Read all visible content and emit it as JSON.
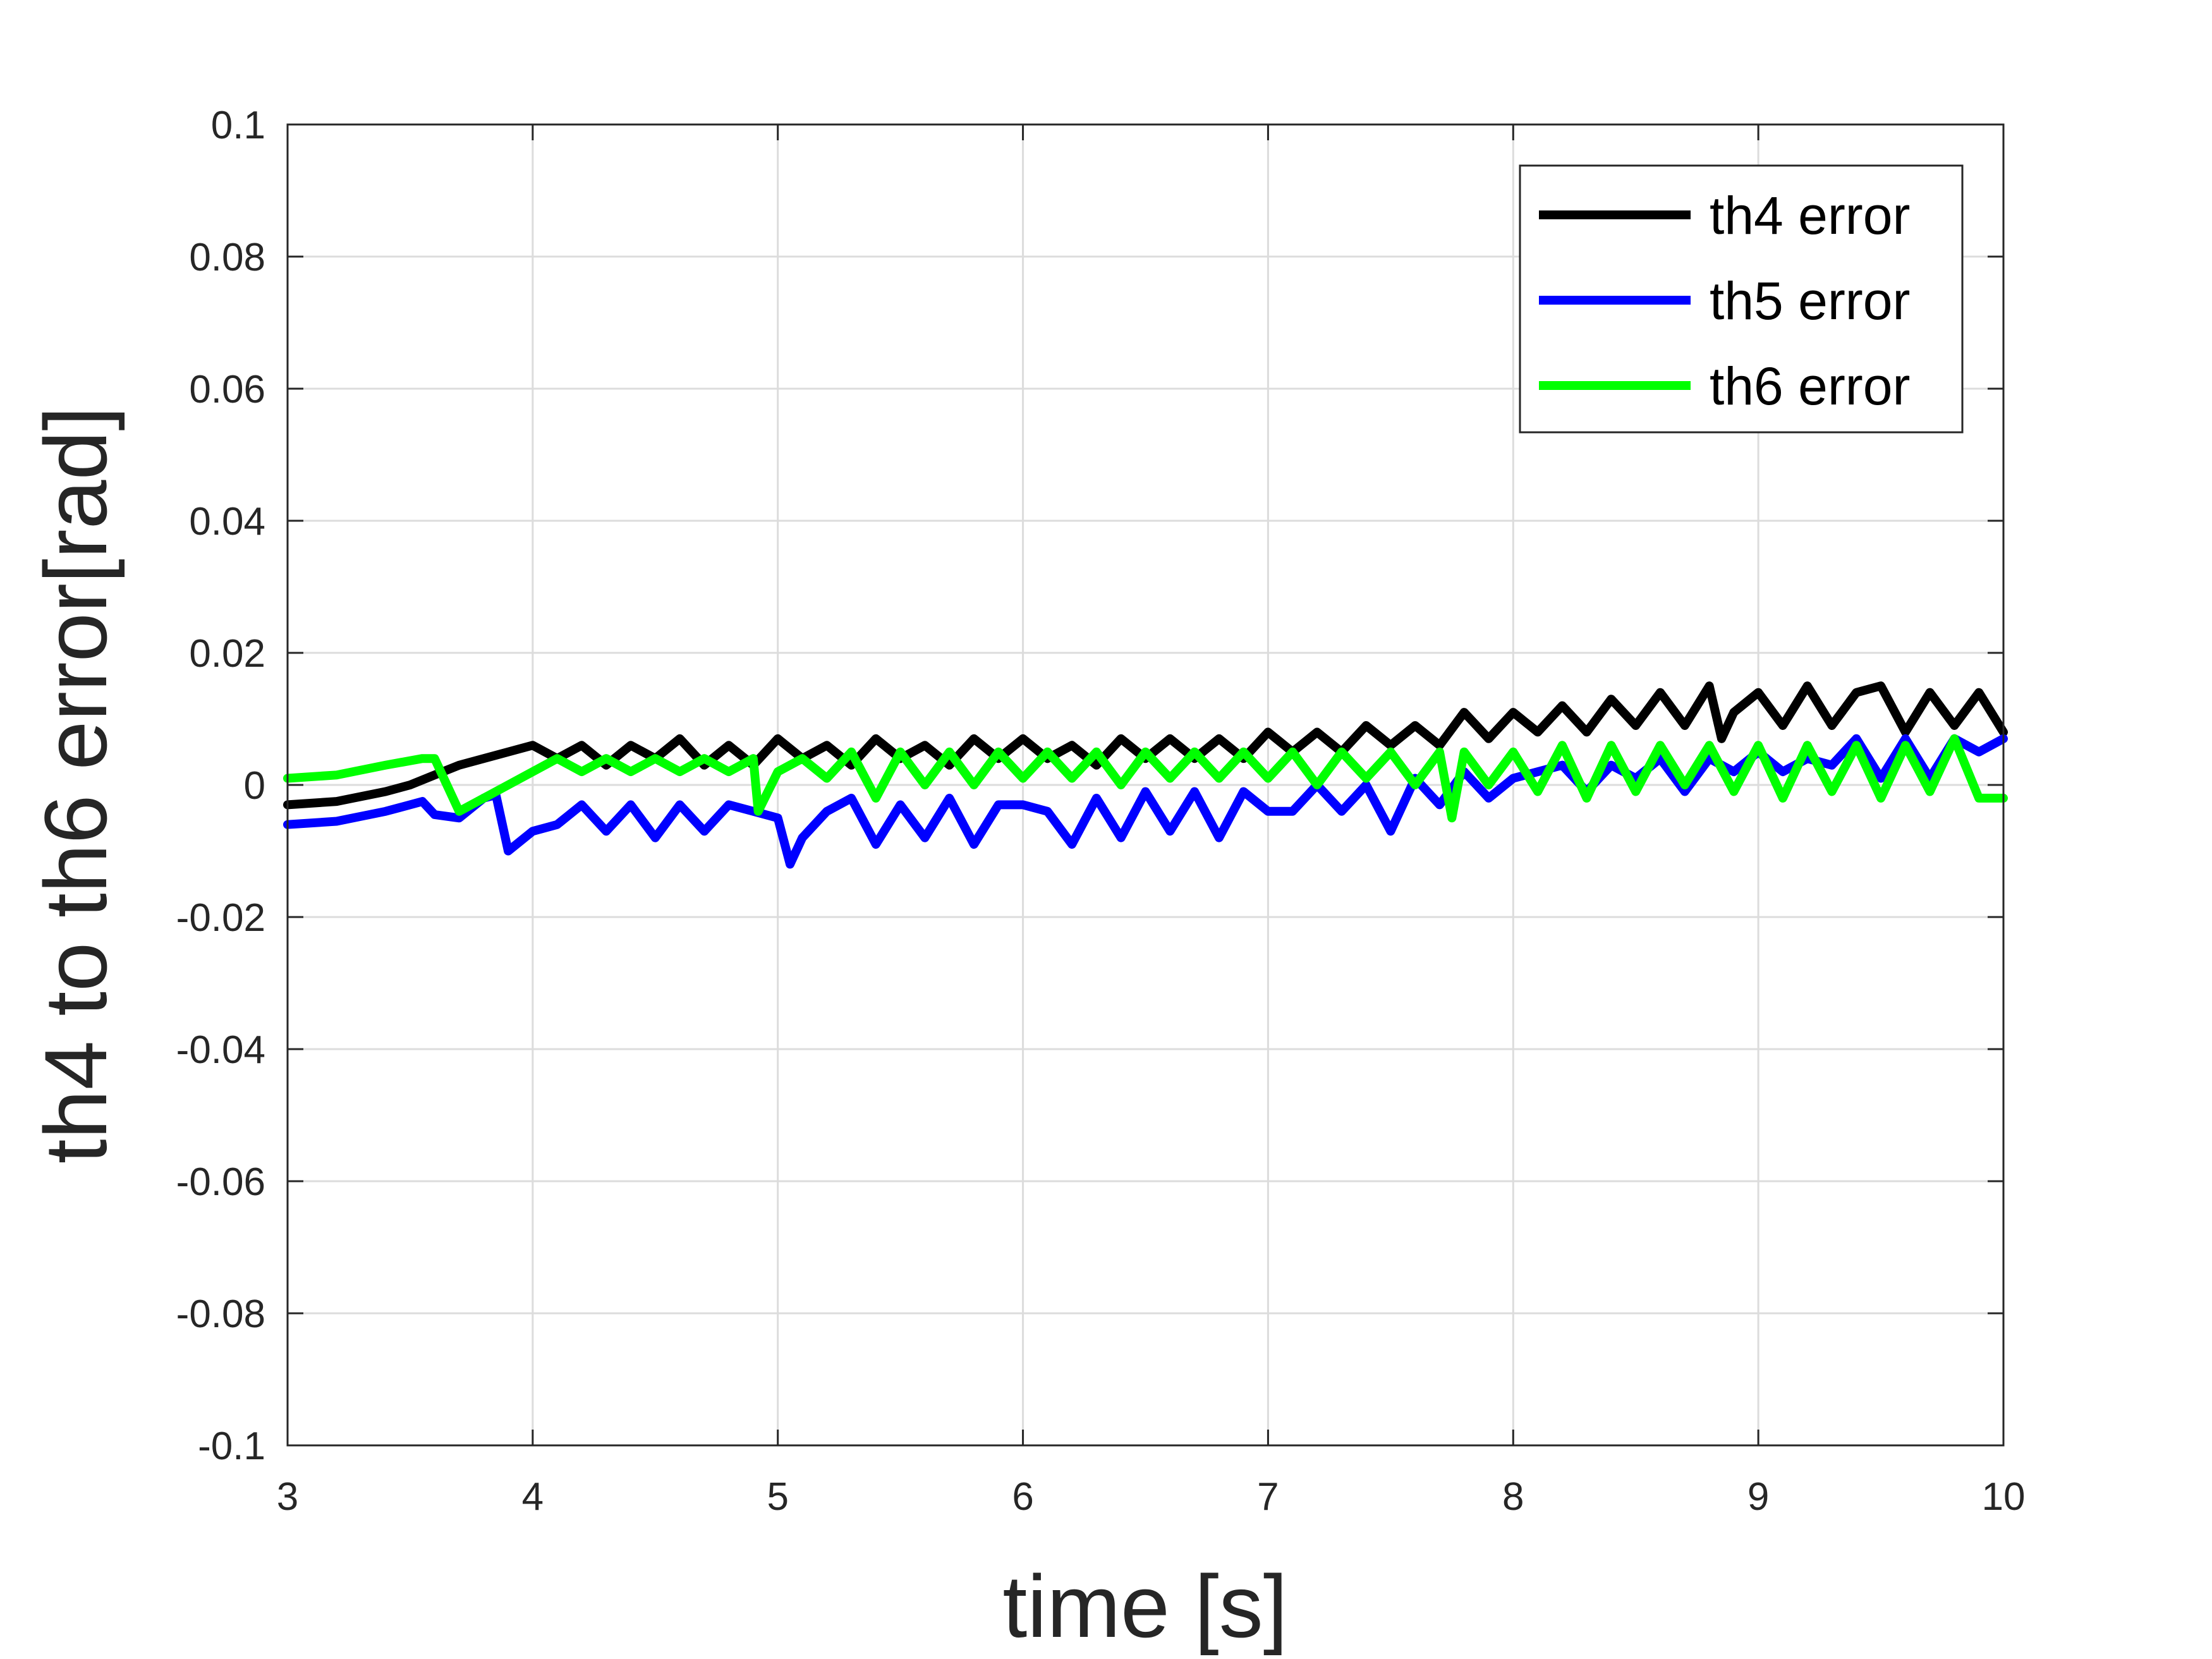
{
  "chart_data": {
    "type": "line",
    "title": "",
    "xlabel": "time [s]",
    "ylabel": "th4 to th6 error[rad]",
    "xlim": [
      3,
      10
    ],
    "ylim": [
      -0.1,
      0.1
    ],
    "xticks": [
      "3",
      "4",
      "5",
      "6",
      "7",
      "8",
      "9",
      "10"
    ],
    "yticks": [
      "0.1",
      "0.08",
      "0.06",
      "0.04",
      "0.02",
      "0",
      "-0.02",
      "-0.04",
      "-0.06",
      "-0.08",
      "-0.1"
    ],
    "grid": true,
    "legend": {
      "position": "top-right",
      "entries": [
        "th4 error",
        "th5 error",
        "th6 error"
      ]
    },
    "series": [
      {
        "name": "th4 error",
        "color": "#000000",
        "x": [
          3.0,
          3.2,
          3.4,
          3.5,
          3.6,
          3.7,
          3.8,
          3.9,
          4.0,
          4.1,
          4.2,
          4.3,
          4.4,
          4.5,
          4.6,
          4.7,
          4.8,
          4.9,
          5.0,
          5.1,
          5.2,
          5.3,
          5.4,
          5.5,
          5.6,
          5.7,
          5.8,
          5.9,
          6.0,
          6.1,
          6.2,
          6.3,
          6.4,
          6.5,
          6.6,
          6.7,
          6.8,
          6.9,
          7.0,
          7.1,
          7.2,
          7.3,
          7.4,
          7.5,
          7.6,
          7.7,
          7.8,
          7.9,
          8.0,
          8.1,
          8.2,
          8.3,
          8.4,
          8.5,
          8.6,
          8.7,
          8.8,
          8.85,
          8.9,
          9.0,
          9.1,
          9.2,
          9.3,
          9.4,
          9.5,
          9.6,
          9.7,
          9.8,
          9.9,
          10.0
        ],
        "y": [
          -0.003,
          -0.0025,
          -0.001,
          0.0,
          0.0015,
          0.003,
          0.004,
          0.005,
          0.006,
          0.004,
          0.006,
          0.003,
          0.006,
          0.004,
          0.007,
          0.003,
          0.006,
          0.003,
          0.007,
          0.004,
          0.006,
          0.003,
          0.007,
          0.004,
          0.006,
          0.003,
          0.007,
          0.004,
          0.007,
          0.004,
          0.006,
          0.003,
          0.007,
          0.004,
          0.007,
          0.004,
          0.007,
          0.004,
          0.008,
          0.005,
          0.008,
          0.005,
          0.009,
          0.006,
          0.009,
          0.006,
          0.011,
          0.007,
          0.011,
          0.008,
          0.012,
          0.008,
          0.013,
          0.009,
          0.014,
          0.009,
          0.015,
          0.007,
          0.011,
          0.014,
          0.009,
          0.015,
          0.009,
          0.014,
          0.015,
          0.008,
          0.014,
          0.009,
          0.014,
          0.008
        ]
      },
      {
        "name": "th5 error",
        "color": "#0000ff",
        "x": [
          3.0,
          3.2,
          3.4,
          3.55,
          3.6,
          3.7,
          3.8,
          3.85,
          3.9,
          4.0,
          4.1,
          4.2,
          4.3,
          4.4,
          4.5,
          4.6,
          4.7,
          4.8,
          4.9,
          5.0,
          5.05,
          5.1,
          5.2,
          5.3,
          5.4,
          5.5,
          5.6,
          5.7,
          5.8,
          5.9,
          6.0,
          6.1,
          6.2,
          6.3,
          6.4,
          6.5,
          6.6,
          6.7,
          6.8,
          6.9,
          7.0,
          7.1,
          7.2,
          7.3,
          7.4,
          7.5,
          7.6,
          7.7,
          7.8,
          7.9,
          8.0,
          8.1,
          8.2,
          8.3,
          8.4,
          8.5,
          8.6,
          8.7,
          8.8,
          8.9,
          9.0,
          9.1,
          9.2,
          9.3,
          9.4,
          9.5,
          9.6,
          9.7,
          9.8,
          9.9,
          10.0
        ],
        "y": [
          -0.006,
          -0.0055,
          -0.004,
          -0.0025,
          -0.0045,
          -0.005,
          -0.002,
          -0.0015,
          -0.01,
          -0.007,
          -0.006,
          -0.003,
          -0.007,
          -0.003,
          -0.008,
          -0.003,
          -0.007,
          -0.003,
          -0.004,
          -0.005,
          -0.012,
          -0.008,
          -0.004,
          -0.002,
          -0.009,
          -0.003,
          -0.008,
          -0.002,
          -0.009,
          -0.003,
          -0.003,
          -0.004,
          -0.009,
          -0.002,
          -0.008,
          -0.001,
          -0.007,
          -0.001,
          -0.008,
          -0.001,
          -0.004,
          -0.004,
          0.0,
          -0.004,
          0.0,
          -0.007,
          0.001,
          -0.003,
          0.002,
          -0.002,
          0.001,
          0.002,
          0.003,
          -0.001,
          0.003,
          0.001,
          0.004,
          -0.001,
          0.004,
          0.002,
          0.005,
          0.002,
          0.004,
          0.003,
          0.007,
          0.001,
          0.007,
          0.001,
          0.007,
          0.005,
          0.007
        ]
      },
      {
        "name": "th6 error",
        "color": "#00ff00",
        "x": [
          3.0,
          3.2,
          3.4,
          3.55,
          3.6,
          3.7,
          3.8,
          3.9,
          4.0,
          4.1,
          4.2,
          4.3,
          4.4,
          4.5,
          4.6,
          4.7,
          4.8,
          4.9,
          4.92,
          5.0,
          5.1,
          5.2,
          5.3,
          5.4,
          5.5,
          5.6,
          5.7,
          5.8,
          5.9,
          6.0,
          6.1,
          6.2,
          6.3,
          6.4,
          6.5,
          6.6,
          6.7,
          6.8,
          6.9,
          7.0,
          7.1,
          7.2,
          7.3,
          7.4,
          7.5,
          7.6,
          7.7,
          7.75,
          7.8,
          7.9,
          8.0,
          8.1,
          8.2,
          8.3,
          8.4,
          8.5,
          8.6,
          8.7,
          8.8,
          8.9,
          9.0,
          9.1,
          9.2,
          9.3,
          9.4,
          9.5,
          9.6,
          9.7,
          9.8,
          9.9,
          10.0
        ],
        "y": [
          0.001,
          0.0015,
          0.003,
          0.004,
          0.004,
          -0.004,
          -0.002,
          0.0,
          0.002,
          0.004,
          0.002,
          0.004,
          0.002,
          0.004,
          0.002,
          0.004,
          0.002,
          0.004,
          -0.004,
          0.002,
          0.004,
          0.001,
          0.005,
          -0.002,
          0.005,
          0.0,
          0.005,
          0.0,
          0.005,
          0.001,
          0.005,
          0.001,
          0.005,
          0.0,
          0.005,
          0.001,
          0.005,
          0.001,
          0.005,
          0.001,
          0.005,
          0.0,
          0.005,
          0.001,
          0.005,
          0.0,
          0.005,
          -0.005,
          0.005,
          0.0,
          0.005,
          -0.001,
          0.006,
          -0.002,
          0.006,
          -0.001,
          0.006,
          0.0,
          0.006,
          -0.001,
          0.006,
          -0.002,
          0.006,
          -0.001,
          0.006,
          -0.002,
          0.006,
          -0.001,
          0.007,
          -0.002,
          -0.002
        ]
      }
    ]
  }
}
